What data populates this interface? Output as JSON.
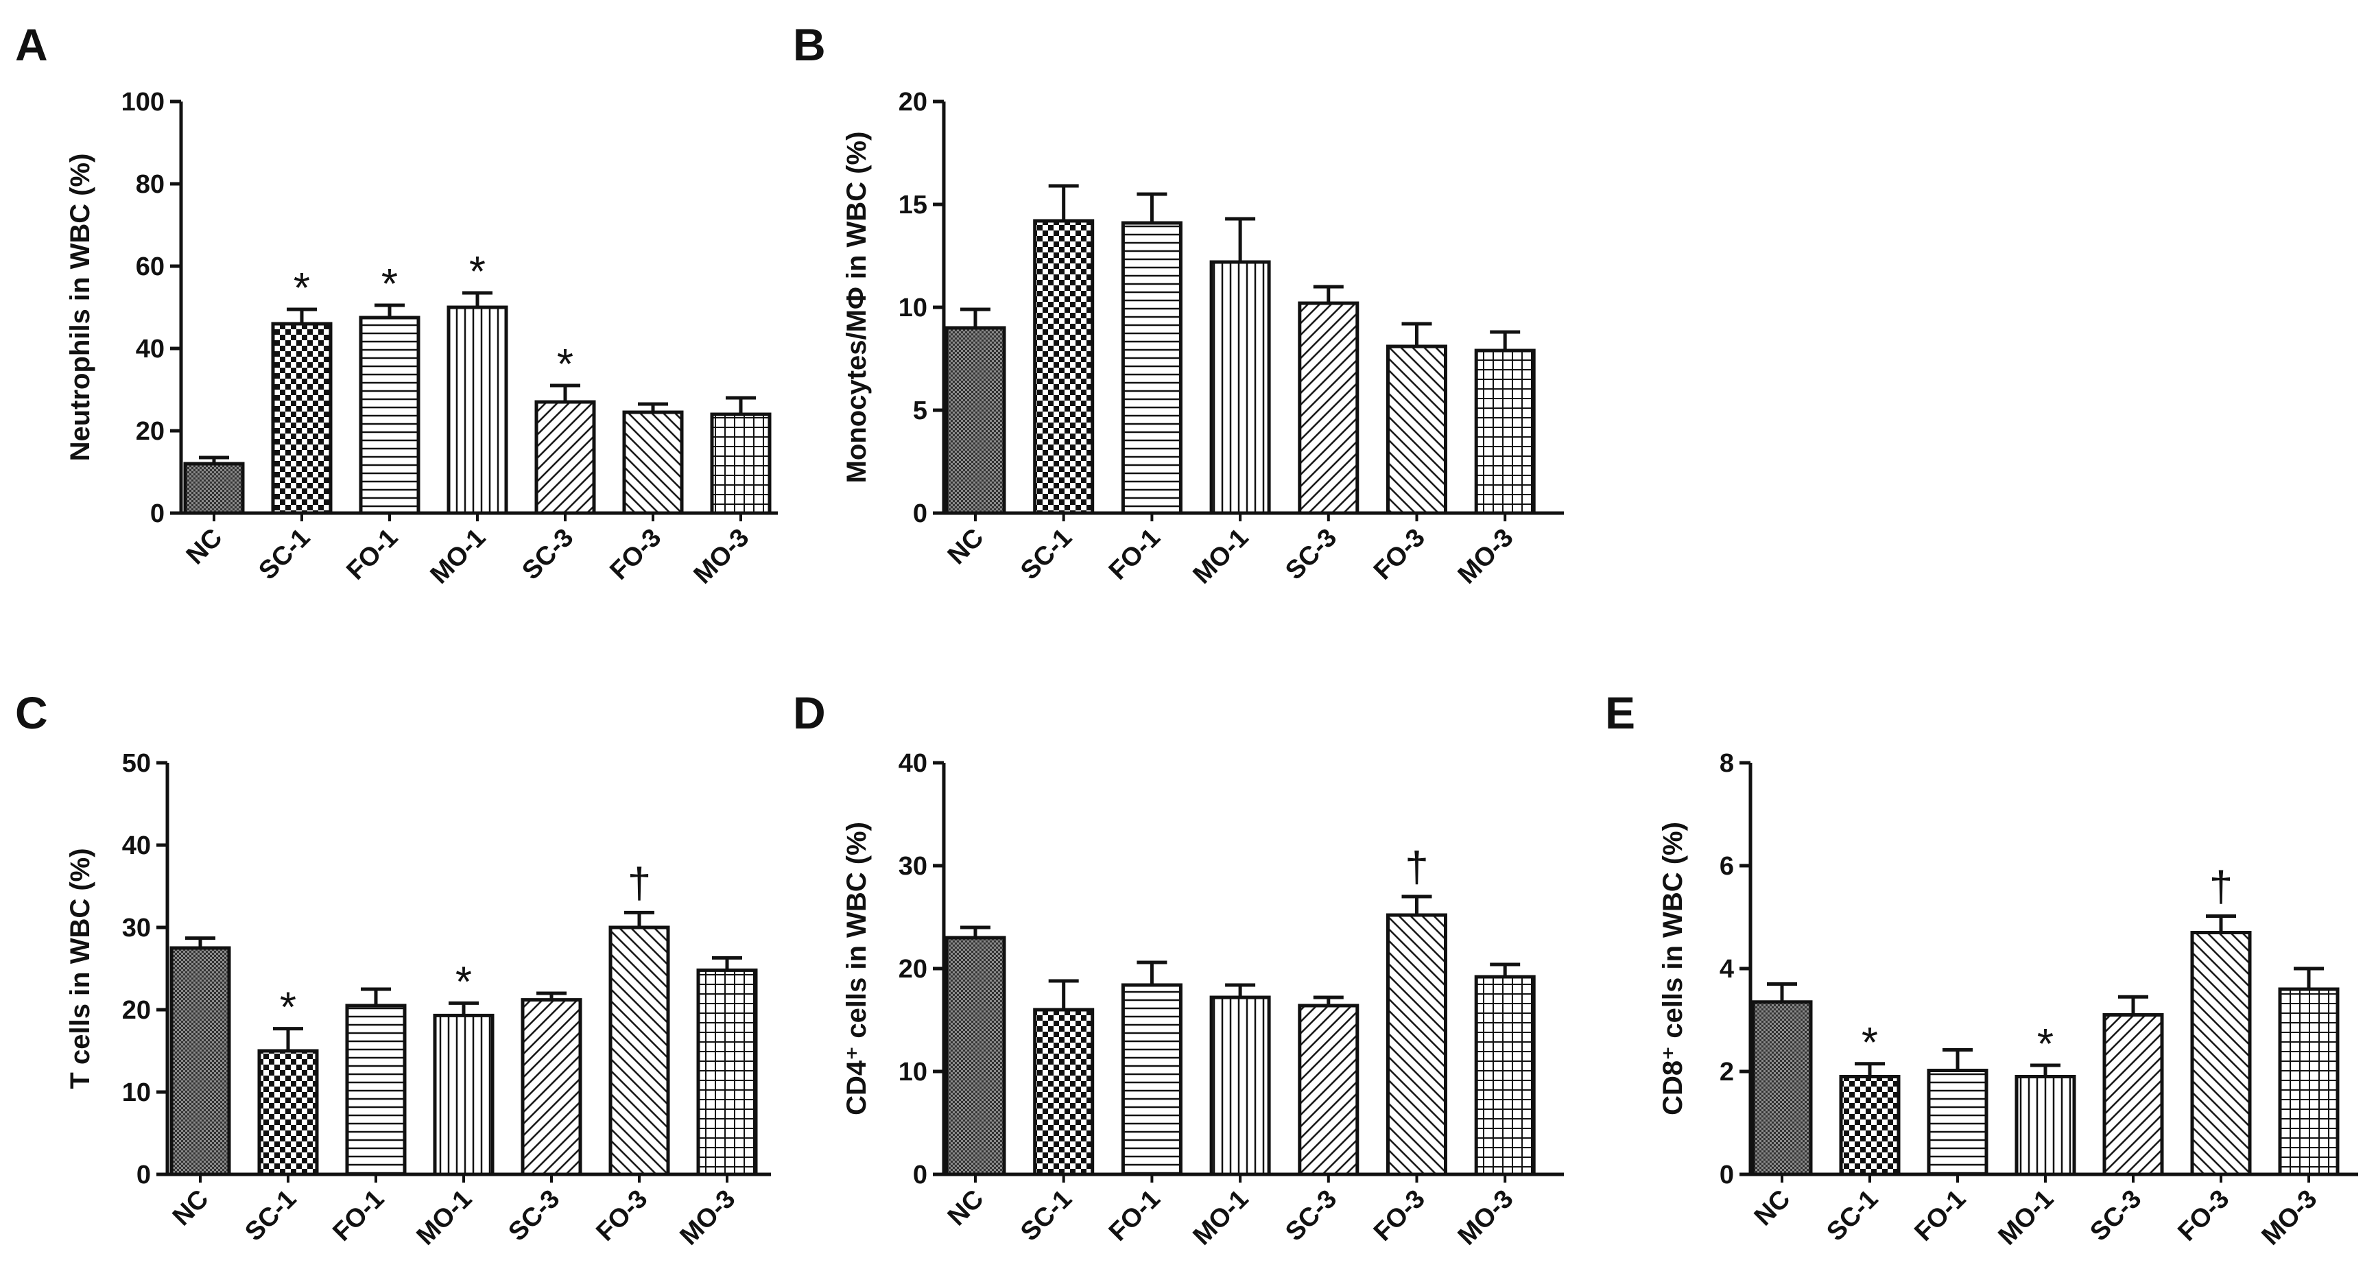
{
  "chart_data": [
    {
      "panel": "A",
      "type": "bar",
      "ylabel": "Neutrophils in WBC (%)",
      "categories": [
        "NC",
        "SC-1",
        "FO-1",
        "MO-1",
        "SC-3",
        "FO-3",
        "MO-3"
      ],
      "values": [
        12,
        46,
        47.5,
        50,
        27,
        24.5,
        24
      ],
      "errors": [
        1.5,
        3.5,
        3,
        3.5,
        4,
        2,
        4
      ],
      "markers": [
        "",
        "*",
        "*",
        "*",
        "*",
        "",
        ""
      ],
      "ylim": [
        0,
        100
      ],
      "yticks": [
        0,
        20,
        40,
        60,
        80,
        100
      ],
      "grid": false
    },
    {
      "panel": "B",
      "type": "bar",
      "ylabel": "Monocytes/MΦ in WBC (%)",
      "categories": [
        "NC",
        "SC-1",
        "FO-1",
        "MO-1",
        "SC-3",
        "FO-3",
        "MO-3"
      ],
      "values": [
        9,
        14.2,
        14.1,
        12.2,
        10.2,
        8.1,
        7.9
      ],
      "errors": [
        0.9,
        1.7,
        1.4,
        2.1,
        0.8,
        1.1,
        0.9
      ],
      "markers": [
        "",
        "",
        "",
        "",
        "",
        "",
        ""
      ],
      "ylim": [
        0,
        20
      ],
      "yticks": [
        0,
        5,
        10,
        15,
        20
      ],
      "grid": false
    },
    {
      "panel": "C",
      "type": "bar",
      "ylabel": "T cells in WBC (%)",
      "categories": [
        "NC",
        "SC-1",
        "FO-1",
        "MO-1",
        "SC-3",
        "FO-3",
        "MO-3"
      ],
      "values": [
        27.5,
        15,
        20.5,
        19.3,
        21.2,
        30,
        24.8
      ],
      "errors": [
        1.2,
        2.7,
        2,
        1.5,
        0.8,
        1.8,
        1.5
      ],
      "markers": [
        "",
        "*",
        "",
        "*",
        "",
        "†",
        ""
      ],
      "ylim": [
        0,
        50
      ],
      "yticks": [
        0,
        10,
        20,
        30,
        40,
        50
      ],
      "grid": false
    },
    {
      "panel": "D",
      "type": "bar",
      "ylabel": "CD4⁺ cells in WBC (%)",
      "categories": [
        "NC",
        "SC-1",
        "FO-1",
        "MO-1",
        "SC-3",
        "FO-3",
        "MO-3"
      ],
      "values": [
        23,
        16,
        18.4,
        17.2,
        16.4,
        25.2,
        19.2
      ],
      "errors": [
        1,
        2.8,
        2.2,
        1.2,
        0.8,
        1.8,
        1.2
      ],
      "markers": [
        "",
        "",
        "",
        "",
        "",
        "†",
        ""
      ],
      "ylim": [
        0,
        40
      ],
      "yticks": [
        0,
        10,
        20,
        30,
        40
      ],
      "grid": false
    },
    {
      "panel": "E",
      "type": "bar",
      "ylabel": "CD8⁺ cells in WBC (%)",
      "categories": [
        "NC",
        "SC-1",
        "FO-1",
        "MO-1",
        "SC-3",
        "FO-3",
        "MO-3"
      ],
      "values": [
        3.35,
        1.9,
        2.02,
        1.9,
        3.1,
        4.7,
        3.6
      ],
      "errors": [
        0.35,
        0.25,
        0.4,
        0.22,
        0.35,
        0.32,
        0.4
      ],
      "markers": [
        "",
        "*",
        "",
        "*",
        "",
        "†",
        ""
      ],
      "ylim": [
        0,
        8
      ],
      "yticks": [
        0,
        2,
        4,
        6,
        8
      ],
      "grid": false
    }
  ]
}
